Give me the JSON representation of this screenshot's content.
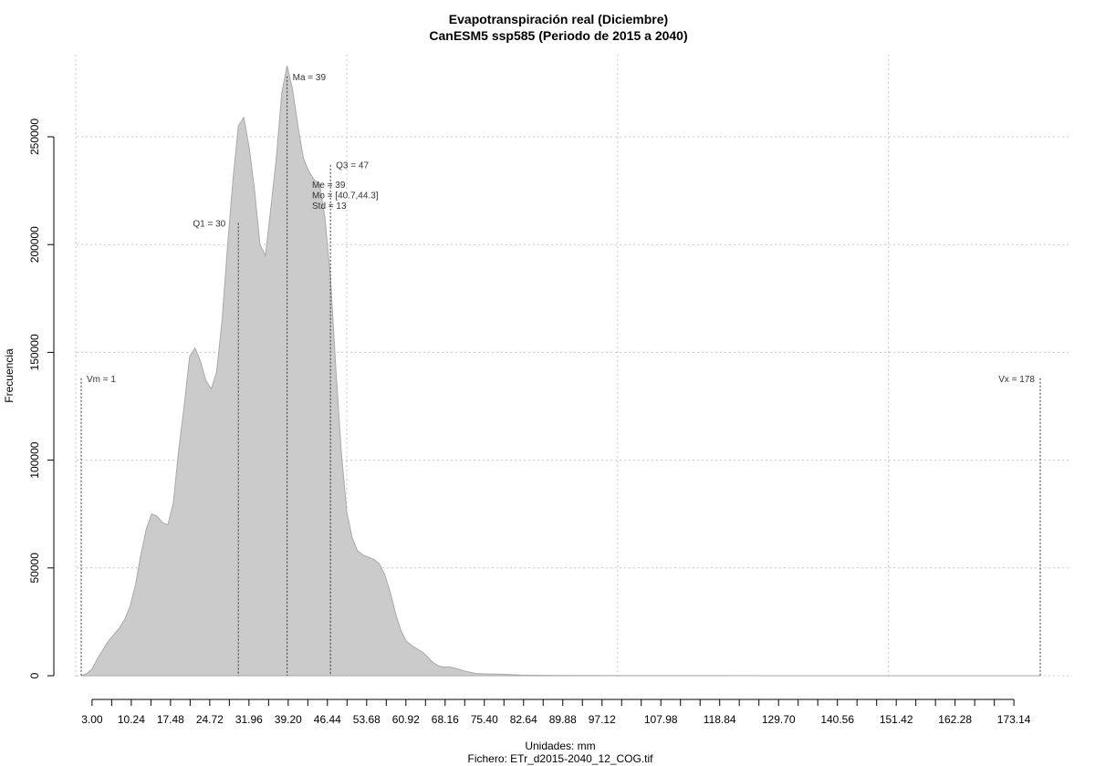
{
  "chart_data": {
    "type": "area",
    "title": "Evapotranspiración real (Diciembre)",
    "subtitle": "CanESM5 ssp585 (Periodo de 2015 a 2040)",
    "xlabel": "Unidades: mm",
    "ylabel": "Frecuencia",
    "caption": "Fichero: ETr_d2015-2040_12_COG.tif",
    "xlim": [
      0,
      180
    ],
    "ylim": [
      0,
      280000
    ],
    "grid": true,
    "fill_color": "#cbcbcb",
    "line_color": "#a9a9a9",
    "x_ticks": [
      3.0,
      6.62,
      10.24,
      13.86,
      17.48,
      21.1,
      24.72,
      28.34,
      31.96,
      35.58,
      39.2,
      42.82,
      46.44,
      50.06,
      53.68,
      57.3,
      60.92,
      64.54,
      68.16,
      71.78,
      75.4,
      79.02,
      82.64,
      86.26,
      89.88,
      93.5,
      97.12,
      100.74,
      104.36,
      107.98,
      111.6,
      115.22,
      118.84,
      122.46,
      126.08,
      129.7,
      133.32,
      136.94,
      140.56,
      144.18,
      147.8,
      151.42,
      155.04,
      158.66,
      162.28,
      165.9,
      169.52,
      173.14
    ],
    "x_tick_labels": [
      {
        "value": 3.0,
        "label": "3.00"
      },
      {
        "value": 10.24,
        "label": "10.24"
      },
      {
        "value": 17.48,
        "label": "17.48"
      },
      {
        "value": 24.72,
        "label": "24.72"
      },
      {
        "value": 31.96,
        "label": "31.96"
      },
      {
        "value": 39.2,
        "label": "39.20"
      },
      {
        "value": 46.44,
        "label": "46.44"
      },
      {
        "value": 53.68,
        "label": "53.68"
      },
      {
        "value": 60.92,
        "label": "60.92"
      },
      {
        "value": 68.16,
        "label": "68.16"
      },
      {
        "value": 75.4,
        "label": "75.40"
      },
      {
        "value": 82.64,
        "label": "82.64"
      },
      {
        "value": 89.88,
        "label": "89.88"
      },
      {
        "value": 97.12,
        "label": "97.12"
      },
      {
        "value": 107.98,
        "label": "107.98"
      },
      {
        "value": 118.84,
        "label": "118.84"
      },
      {
        "value": 129.7,
        "label": "129.70"
      },
      {
        "value": 140.56,
        "label": "140.56"
      },
      {
        "value": 151.42,
        "label": "151.42"
      },
      {
        "value": 162.28,
        "label": "162.28"
      },
      {
        "value": 173.14,
        "label": "173.14"
      }
    ],
    "y_ticks": [
      {
        "value": 0,
        "label": "0"
      },
      {
        "value": 50000,
        "label": "50000"
      },
      {
        "value": 100000,
        "label": "100000"
      },
      {
        "value": 150000,
        "label": "150000"
      },
      {
        "value": 200000,
        "label": "200000"
      },
      {
        "value": 250000,
        "label": "250000"
      }
    ],
    "x_grid": [
      0,
      50,
      100,
      150
    ],
    "y_grid": [
      0,
      50000,
      100000,
      150000,
      200000,
      250000
    ],
    "x": [
      1.0,
      2.0,
      3.0,
      4.0,
      5.0,
      6.0,
      7.0,
      8.0,
      9.0,
      10.0,
      11.0,
      12.0,
      13.0,
      14.0,
      15.0,
      16.0,
      17.0,
      18.0,
      19.0,
      20.0,
      21.0,
      22.0,
      23.0,
      24.0,
      25.0,
      26.0,
      27.0,
      28.0,
      29.0,
      30.0,
      31.0,
      32.0,
      33.0,
      34.0,
      35.0,
      36.0,
      37.0,
      38.0,
      39.0,
      40.0,
      41.0,
      42.0,
      43.0,
      44.0,
      45.0,
      46.0,
      47.0,
      48.0,
      49.0,
      50.0,
      51.0,
      52.0,
      53.0,
      54.0,
      55.0,
      56.0,
      57.0,
      58.0,
      59.0,
      60.0,
      61.0,
      62.0,
      63.0,
      64.0,
      65.0,
      66.0,
      67.0,
      68.0,
      69.0,
      70.0,
      71.0,
      72.0,
      73.0,
      74.0,
      75.0,
      76.0,
      78.0,
      80.0,
      82.0,
      85.0,
      88.0,
      92.0,
      96.0,
      100.0,
      110.0,
      130.0,
      150.0,
      170.0,
      178.0
    ],
    "y": [
      0,
      1000,
      3000,
      8000,
      12000,
      16000,
      19000,
      22000,
      26000,
      32000,
      42000,
      56000,
      68000,
      75000,
      74000,
      71000,
      70000,
      80000,
      105000,
      125000,
      148000,
      152000,
      146000,
      137000,
      133000,
      141000,
      165000,
      199000,
      230000,
      255000,
      259000,
      245000,
      225000,
      200000,
      195000,
      217000,
      240000,
      270000,
      283000,
      272000,
      255000,
      240000,
      234000,
      230000,
      228000,
      212000,
      185000,
      142000,
      104000,
      76000,
      64000,
      58000,
      56000,
      55000,
      54000,
      52000,
      47000,
      39000,
      29000,
      21000,
      16000,
      14000,
      12500,
      11000,
      8500,
      6000,
      4500,
      4000,
      4000,
      3500,
      2800,
      2000,
      1500,
      1000,
      900,
      800,
      700,
      500,
      300,
      200,
      150,
      100,
      80,
      60,
      40,
      20,
      10,
      5,
      0
    ],
    "markers": [
      {
        "name": "Vm",
        "label": "Vm = 1",
        "x": 1,
        "top": 138000
      },
      {
        "name": "Q1",
        "label": "Q1 = 30",
        "x": 30,
        "top": 210000
      },
      {
        "name": "Ma",
        "label": "Ma = 39",
        "x": 39,
        "top": 278000
      },
      {
        "name": "Q3",
        "label": "Q3 = 47",
        "x": 47,
        "top": 237000
      },
      {
        "name": "Vx",
        "label": "Vx = 178",
        "x": 178,
        "top": 138000
      }
    ],
    "stats": [
      "Me = 39",
      "Mo = [40.7,44.3]",
      "Std = 13"
    ]
  }
}
